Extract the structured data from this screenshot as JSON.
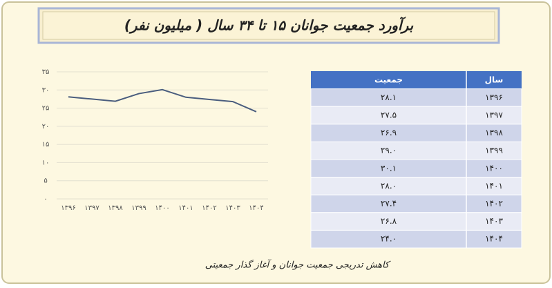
{
  "chart_data": {
    "type": "line",
    "title": "برآورد جمعیت جوانان ۱۵ تا ۳۴ سال ( میلیون نفر)",
    "categories": [
      "۱۳۹۶",
      "۱۳۹۷",
      "۱۳۹۸",
      "۱۳۹۹",
      "۱۴۰۰",
      "۱۴۰۱",
      "۱۴۰۲",
      "۱۴۰۳",
      "۱۴۰۴"
    ],
    "values": [
      28.1,
      27.5,
      26.9,
      29.0,
      30.1,
      28.0,
      27.4,
      26.8,
      24.0
    ],
    "color": "#4a5d7e",
    "ylim": [
      0,
      35
    ],
    "yticks": [
      {
        "value": 0,
        "label": "۰"
      },
      {
        "value": 5,
        "label": "۵"
      },
      {
        "value": 10,
        "label": "۱۰"
      },
      {
        "value": 15,
        "label": "۱۵"
      },
      {
        "value": 20,
        "label": "۲۰"
      },
      {
        "value": 25,
        "label": "۲۵"
      },
      {
        "value": 30,
        "label": "۳۰"
      },
      {
        "value": 35,
        "label": "۳۵"
      }
    ],
    "grid": true,
    "caption": "کاهش تدریجی جمعیت جوانان و آغاز گذار جمعیتی"
  },
  "table": {
    "header": [
      "سال",
      "جمعیت"
    ],
    "rows": [
      [
        "۱۳۹۶",
        "۲۸.۱"
      ],
      [
        "۱۳۹۷",
        "۲۷.۵"
      ],
      [
        "۱۳۹۸",
        "۲۶.۹"
      ],
      [
        "۱۳۹۹",
        "۲۹.۰"
      ],
      [
        "۱۴۰۰",
        "۳۰.۱"
      ],
      [
        "۱۴۰۱",
        "۲۸.۰"
      ],
      [
        "۱۴۰۲",
        "۲۷.۴"
      ],
      [
        "۱۴۰۳",
        "۲۶.۸"
      ],
      [
        "۱۴۰۴",
        "۲۴.۰"
      ]
    ]
  }
}
